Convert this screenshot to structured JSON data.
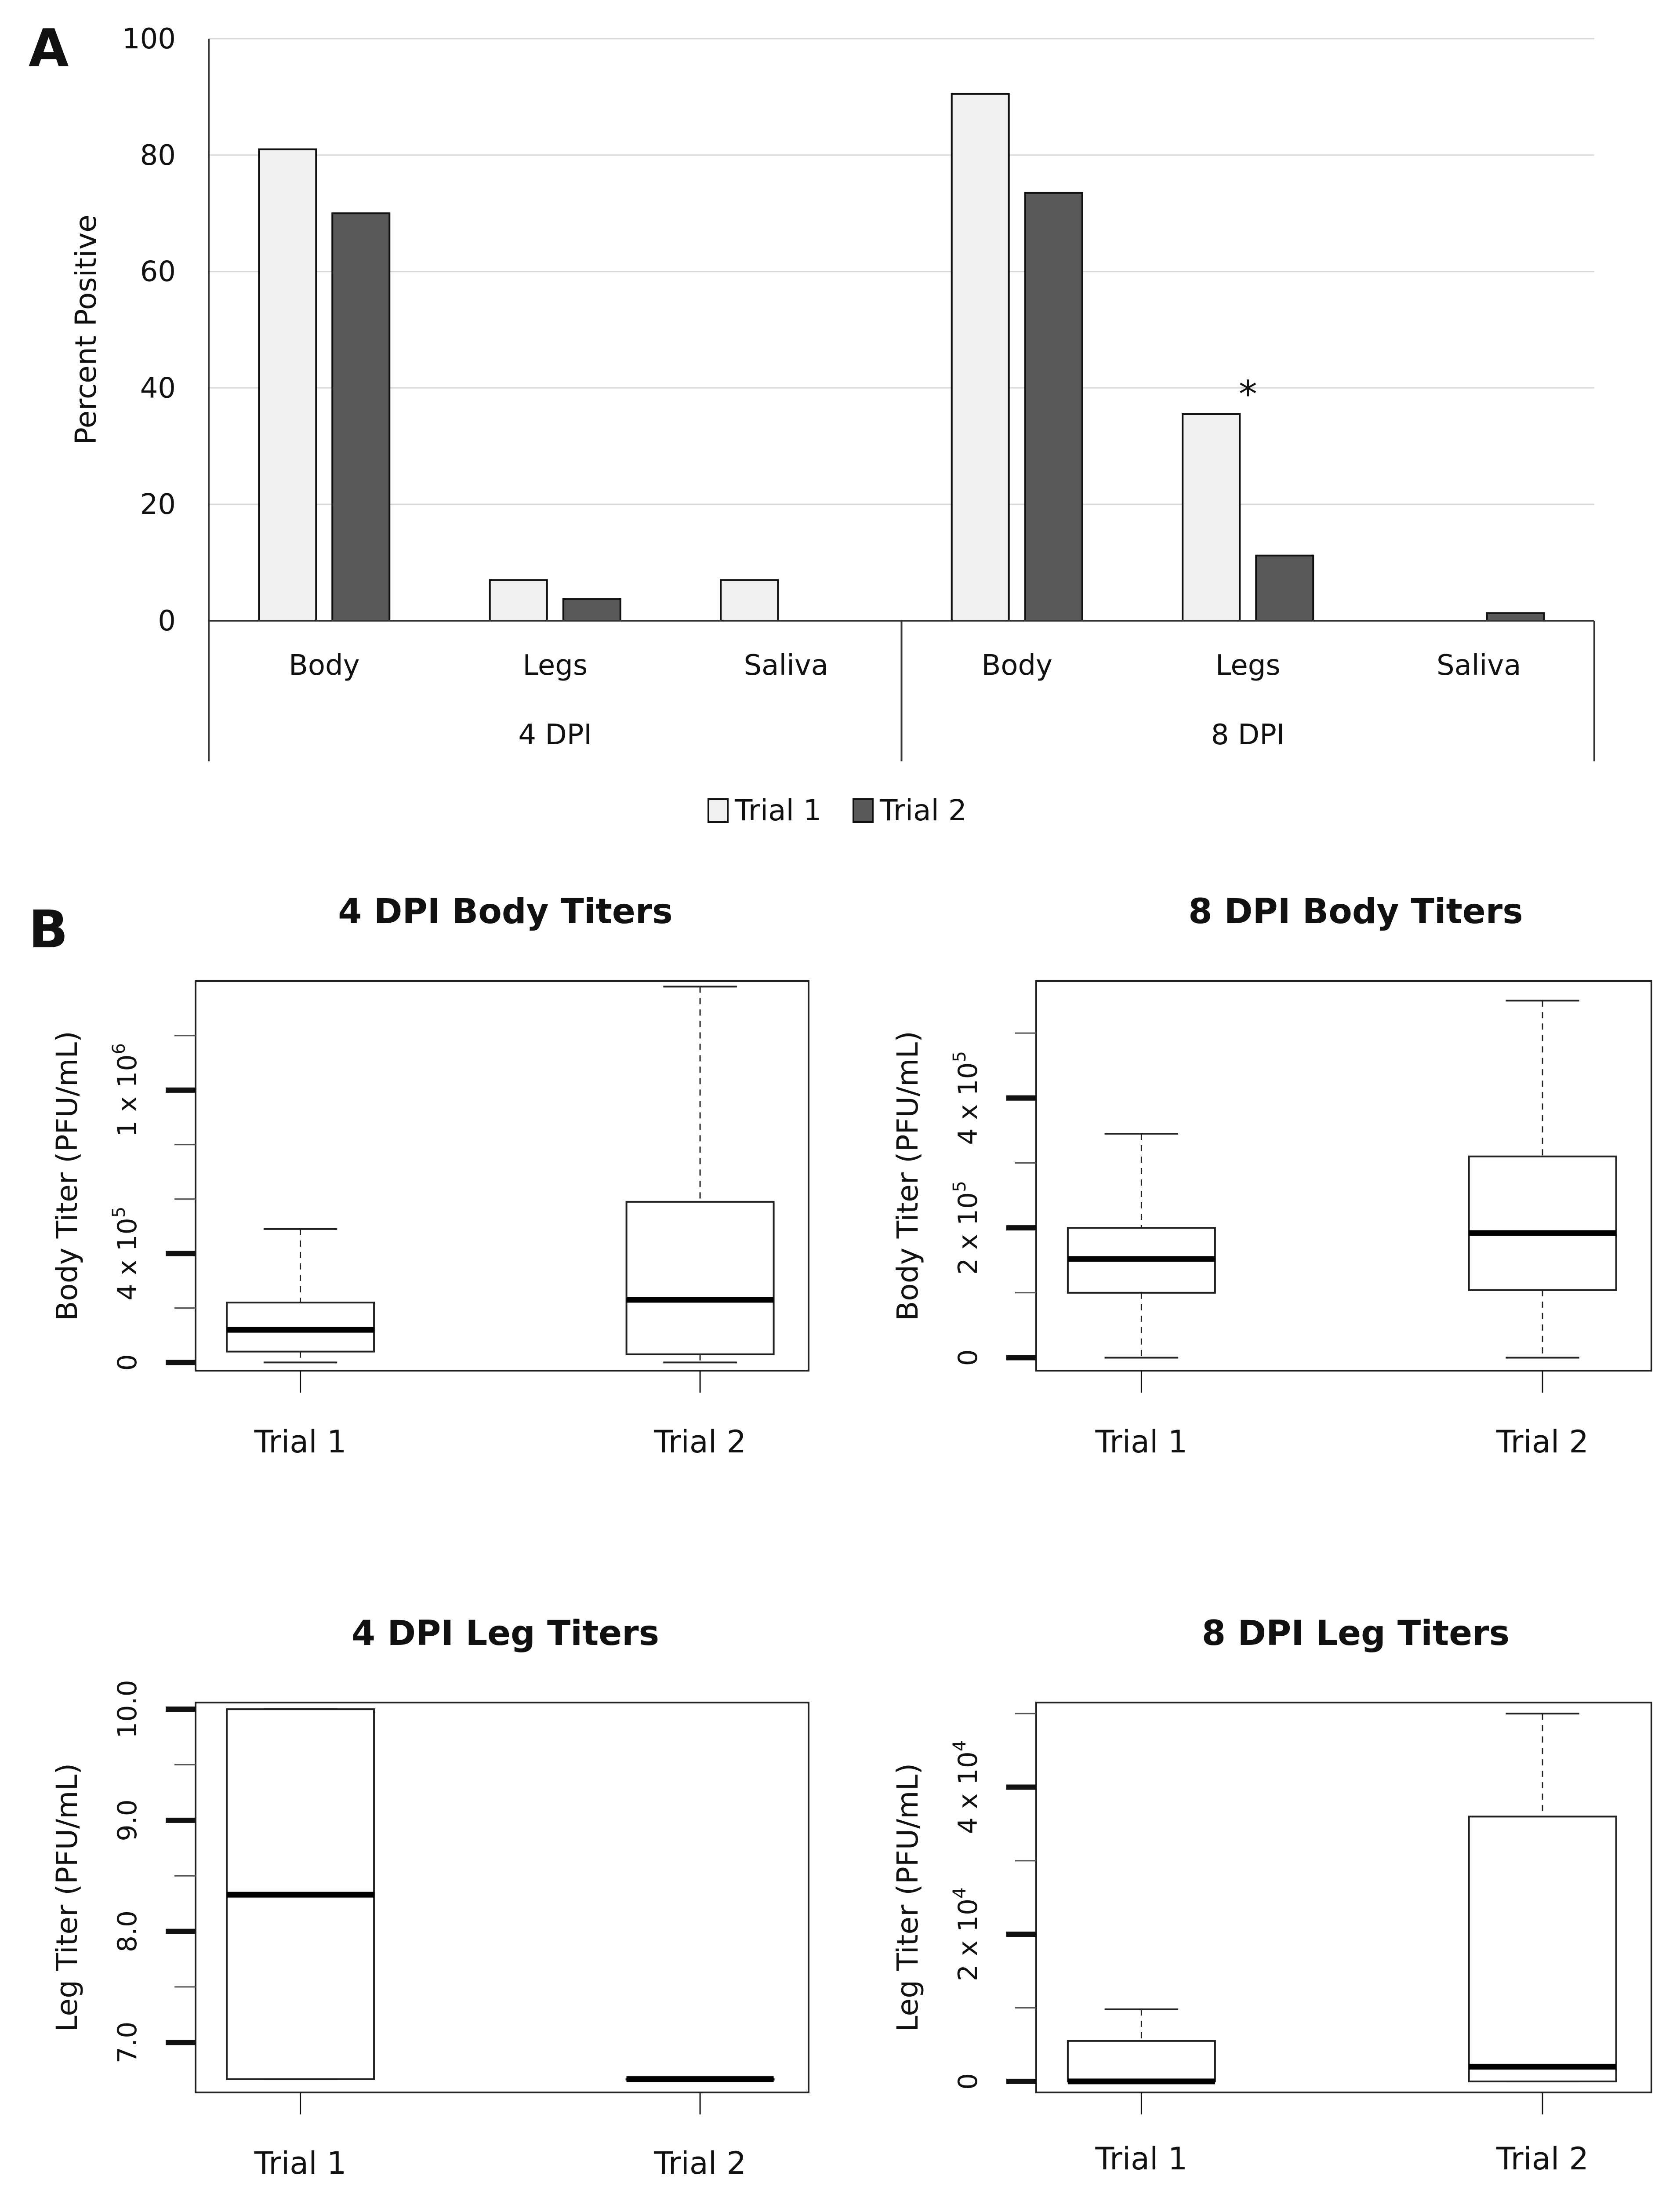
{
  "panels": {
    "a_label": "A",
    "b_label": "B"
  },
  "chart_data": [
    {
      "id": "percent_positive",
      "type": "bar",
      "title": "",
      "ylabel": "Percent Positive",
      "xlabel": "",
      "ylim": [
        0,
        100
      ],
      "yticks": [
        "0",
        "20",
        "40",
        "60",
        "80",
        "100"
      ],
      "grid": true,
      "groups": [
        "4 DPI",
        "8 DPI"
      ],
      "categories": [
        "Body",
        "Legs",
        "Saliva",
        "Body",
        "Legs",
        "Saliva"
      ],
      "series": [
        {
          "name": "Trial 1",
          "color": "#f0f0f0",
          "values": [
            81,
            7,
            7,
            90.5,
            35.5,
            0
          ]
        },
        {
          "name": "Trial 2",
          "color": "#595959",
          "values": [
            70,
            3.7,
            0,
            73.5,
            11.2,
            1.3
          ]
        }
      ],
      "annotations": [
        {
          "text": "*",
          "category_index": 4,
          "value": 39
        }
      ],
      "legend": [
        "Trial 1",
        "Trial 2"
      ],
      "legend_position": "bottom"
    },
    {
      "id": "body_4dpi",
      "type": "boxplot",
      "title": "4 DPI Body Titers",
      "ylabel": "Body Titer (PFU/mL)",
      "categories": [
        "Trial 1",
        "Trial 2"
      ],
      "ylim": [
        -30000,
        1400000
      ],
      "major_ticks": [
        0,
        400000,
        1000000
      ],
      "minor_ticks": [
        200000,
        600000,
        800000,
        1200000
      ],
      "tick_labels": [
        {
          "value": 0,
          "text": "0"
        },
        {
          "value": 400000,
          "base": "4 x 10",
          "exp": "5"
        },
        {
          "value": 1000000,
          "base": "1 x 10",
          "exp": "6"
        }
      ],
      "boxes": [
        {
          "min": 0,
          "q1": 40000,
          "median": 120000,
          "q3": 220000,
          "max": 490000
        },
        {
          "min": 0,
          "q1": 30000,
          "median": 230000,
          "q3": 590000,
          "max": 1380000
        }
      ]
    },
    {
      "id": "body_8dpi",
      "type": "boxplot",
      "title": "8 DPI Body Titers",
      "ylabel": "Body Titer (PFU/mL)",
      "categories": [
        "Trial 1",
        "Trial 2"
      ],
      "ylim": [
        -20000,
        580000
      ],
      "major_ticks": [
        0,
        200000,
        400000
      ],
      "minor_ticks": [
        100000,
        300000,
        500000
      ],
      "tick_labels": [
        {
          "value": 200000,
          "base": "2 x 10",
          "exp": "5"
        },
        {
          "value": 400000,
          "base": "4 x 10",
          "exp": "5"
        },
        {
          "value": 0,
          "text": "0"
        }
      ],
      "boxes": [
        {
          "min": 0,
          "q1": 100000,
          "median": 152000,
          "q3": 200000,
          "max": 345000
        },
        {
          "min": 0,
          "q1": 104000,
          "median": 192000,
          "q3": 310000,
          "max": 550000
        }
      ]
    },
    {
      "id": "leg_4dpi",
      "type": "boxplot",
      "title": "4 DPI Leg Titers",
      "ylabel": "Leg Titer (PFU/mL)",
      "categories": [
        "Trial 1",
        "Trial 2"
      ],
      "ylim": [
        6.55,
        10.06
      ],
      "major_ticks": [
        7,
        8,
        9,
        10
      ],
      "minor_ticks": [
        7.5,
        8.5,
        9.5
      ],
      "tick_labels": [
        {
          "value": 7,
          "text": "7.0"
        },
        {
          "value": 8,
          "text": "8.0"
        },
        {
          "value": 9,
          "text": "9.0"
        },
        {
          "value": 10,
          "text": "10.0"
        }
      ],
      "boxes": [
        {
          "min": 6.67,
          "q1": 6.67,
          "median": 8.33,
          "q3": 10,
          "max": 10
        },
        {
          "min": 6.67,
          "q1": 6.67,
          "median": 6.67,
          "q3": 6.67,
          "max": 6.67
        }
      ]
    },
    {
      "id": "leg_8dpi",
      "type": "boxplot",
      "title": "8 DPI Leg Titers",
      "ylabel": "Leg Titer (PFU/mL)",
      "categories": [
        "Trial 1",
        "Trial 2"
      ],
      "ylim": [
        -1500,
        51500
      ],
      "major_ticks": [
        0,
        20000,
        40000
      ],
      "minor_ticks": [
        10000,
        30000,
        50000
      ],
      "tick_labels": [
        {
          "value": 0,
          "text": "0"
        },
        {
          "value": 20000,
          "base": "2 x 10",
          "exp": "4"
        },
        {
          "value": 40000,
          "base": "4 x 10",
          "exp": "4"
        }
      ],
      "boxes": [
        {
          "min": 0,
          "q1": 0,
          "median": 0,
          "q3": 5500,
          "max": 9800
        },
        {
          "min": 0,
          "q1": 0,
          "median": 2000,
          "q3": 36000,
          "max": 50000
        }
      ]
    }
  ]
}
